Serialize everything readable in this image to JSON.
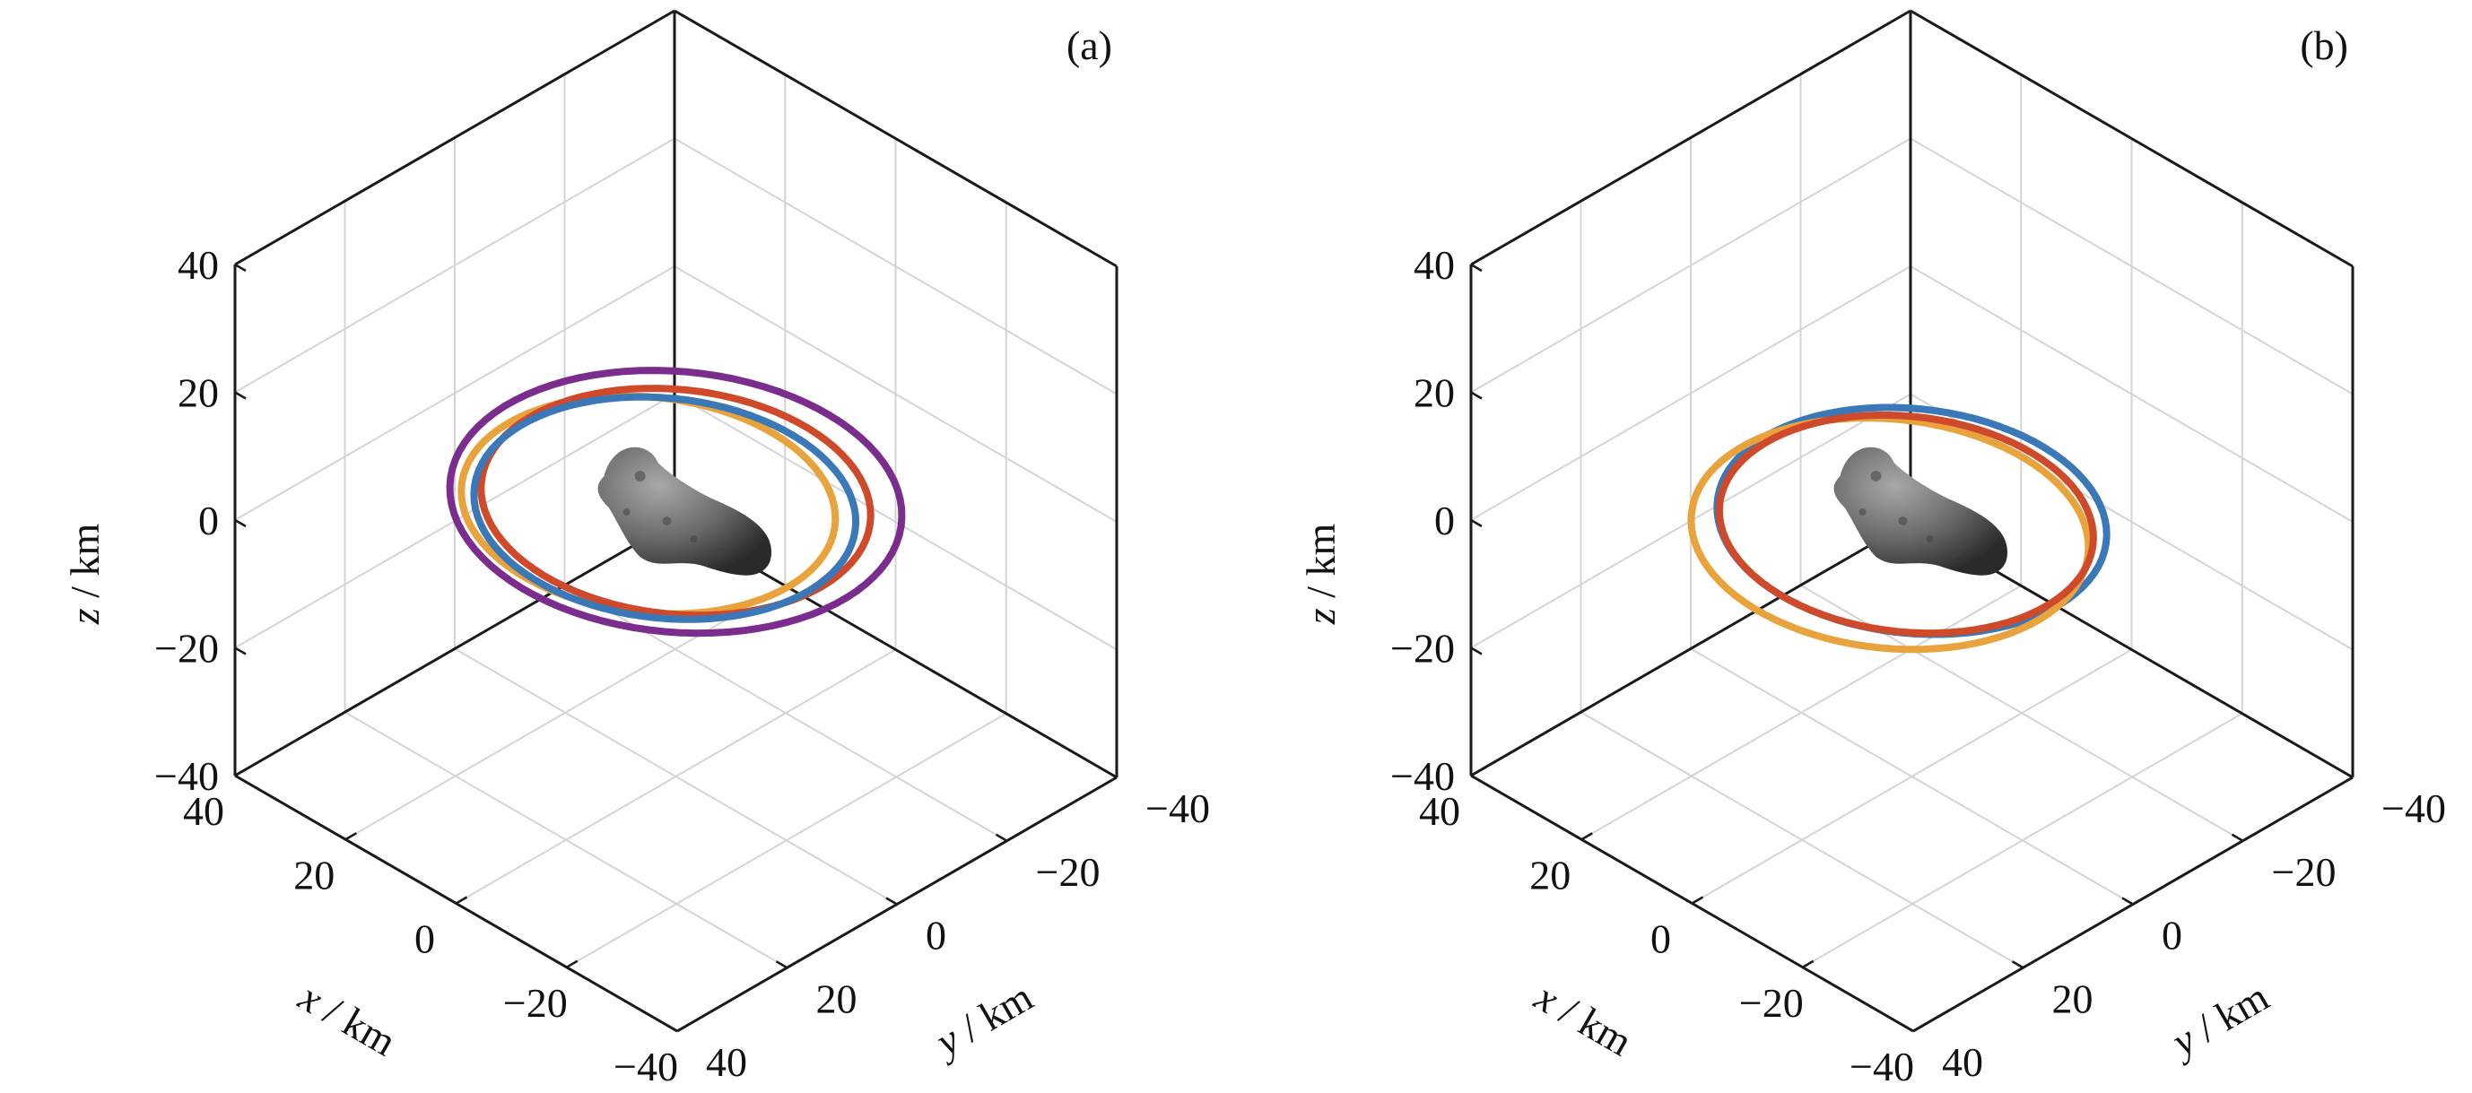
{
  "chart_data": [
    {
      "type": "line",
      "subtype": "3d-orbit",
      "panel_label": "(a)",
      "xlabel_var": "x",
      "xlabel_unit": " / km",
      "ylabel_var": "y",
      "ylabel_unit": " / km",
      "zlabel_var": "z",
      "zlabel_unit": " / km",
      "xlim": [
        -40,
        40
      ],
      "ylim": [
        -40,
        40
      ],
      "zlim": [
        -40,
        40
      ],
      "x_ticks": [
        "40",
        "20",
        "0",
        "−20",
        "−40"
      ],
      "y_ticks": [
        "−40",
        "−20",
        "0",
        "20",
        "40"
      ],
      "z_ticks": [
        "40",
        "20",
        "0",
        "−20",
        "−40"
      ],
      "grid": true,
      "center_body": "asteroid",
      "series": [
        {
          "color": "#7b2d8e",
          "center": [
            0,
            0,
            3
          ],
          "radius": 29,
          "kink": true
        },
        {
          "color": "#e8a33d",
          "center": [
            2,
            3,
            3
          ],
          "radius": 24
        },
        {
          "color": "#cf4a2a",
          "center": [
            0,
            0,
            3
          ],
          "radius": 25
        },
        {
          "color": "#3a78b8",
          "center": [
            1,
            1,
            2
          ],
          "radius": 24.5
        }
      ]
    },
    {
      "type": "line",
      "subtype": "3d-orbit",
      "panel_label": "(b)",
      "xlabel_var": "x",
      "xlabel_unit": " / km",
      "ylabel_var": "y",
      "ylabel_unit": " / km",
      "zlabel_var": "z",
      "zlabel_unit": " / km",
      "xlim": [
        -40,
        40
      ],
      "ylim": [
        -40,
        40
      ],
      "zlim": [
        -40,
        40
      ],
      "x_ticks": [
        "40",
        "20",
        "0",
        "−20",
        "−40"
      ],
      "y_ticks": [
        "−40",
        "−20",
        "0",
        "20",
        "40"
      ],
      "z_ticks": [
        "40",
        "20",
        "0",
        "−20",
        "−40"
      ],
      "grid": true,
      "center_body": "asteroid",
      "series": [
        {
          "color": "#3a78b8",
          "center": [
            0,
            0,
            0
          ],
          "radius": 25
        },
        {
          "color": "#e8a33d",
          "center": [
            2,
            2,
            -2
          ],
          "radius": 25.5
        },
        {
          "color": "#cf4a2a",
          "center": [
            0,
            1,
            0
          ],
          "radius": 24
        }
      ]
    }
  ]
}
